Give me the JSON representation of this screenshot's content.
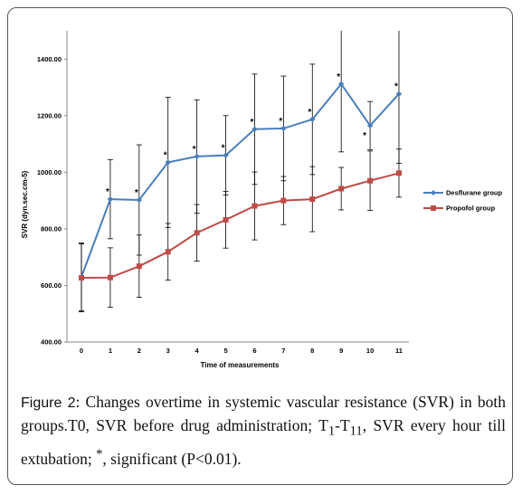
{
  "chart_data": {
    "type": "line",
    "xlabel": "Time of measurements",
    "ylabel": "SVR (dyn.sec.cm-5)",
    "x": [
      0,
      1,
      2,
      3,
      4,
      5,
      6,
      7,
      8,
      9,
      10,
      11
    ],
    "x_tick_labels": [
      "0",
      "1",
      "2",
      "3",
      "4",
      "5",
      "6",
      "7",
      "8",
      "9",
      "10",
      "11"
    ],
    "ylim": [
      400,
      1500
    ],
    "y_ticks": [
      400,
      600,
      800,
      1000,
      1200,
      1400
    ],
    "y_tick_labels": [
      "400.00",
      "600.00",
      "800.00",
      "1000.00",
      "1200.00",
      "1400.00"
    ],
    "grid": false,
    "legend_position": "right",
    "significance_marker": "*",
    "series": [
      {
        "name": "Desflurane group",
        "color": "#4a7ebb",
        "marker": "diamond",
        "values": [
          630,
          905,
          902,
          1035,
          1056,
          1060,
          1152,
          1155,
          1187,
          1312,
          1165,
          1277
        ],
        "error": [
          120,
          140,
          195,
          230,
          200,
          140,
          195,
          185,
          195,
          240,
          85,
          245
        ],
        "significant": [
          false,
          true,
          true,
          true,
          true,
          true,
          true,
          true,
          true,
          true,
          true,
          true
        ]
      },
      {
        "name": "Propofol group",
        "color": "#be4b48",
        "marker": "square",
        "values": [
          627,
          628,
          668,
          719,
          786,
          832,
          881,
          900,
          905,
          942,
          970,
          997
        ],
        "error": [
          120,
          105,
          110,
          100,
          100,
          100,
          120,
          85,
          115,
          75,
          105,
          85
        ],
        "significant": [
          false,
          false,
          false,
          false,
          false,
          false,
          false,
          false,
          false,
          false,
          false,
          false
        ]
      }
    ]
  },
  "caption": {
    "label": "Figure 2",
    "text": ": Changes overtime in systemic vascular resistance (SVR) in both groups.T0, SVR before drug administration; T",
    "sub1": "1",
    "dash": "-T",
    "sub11": "11",
    "text2": ", SVR every hour till extubation; ",
    "sup": "*",
    "text3": ", significant (P<0.01)."
  }
}
